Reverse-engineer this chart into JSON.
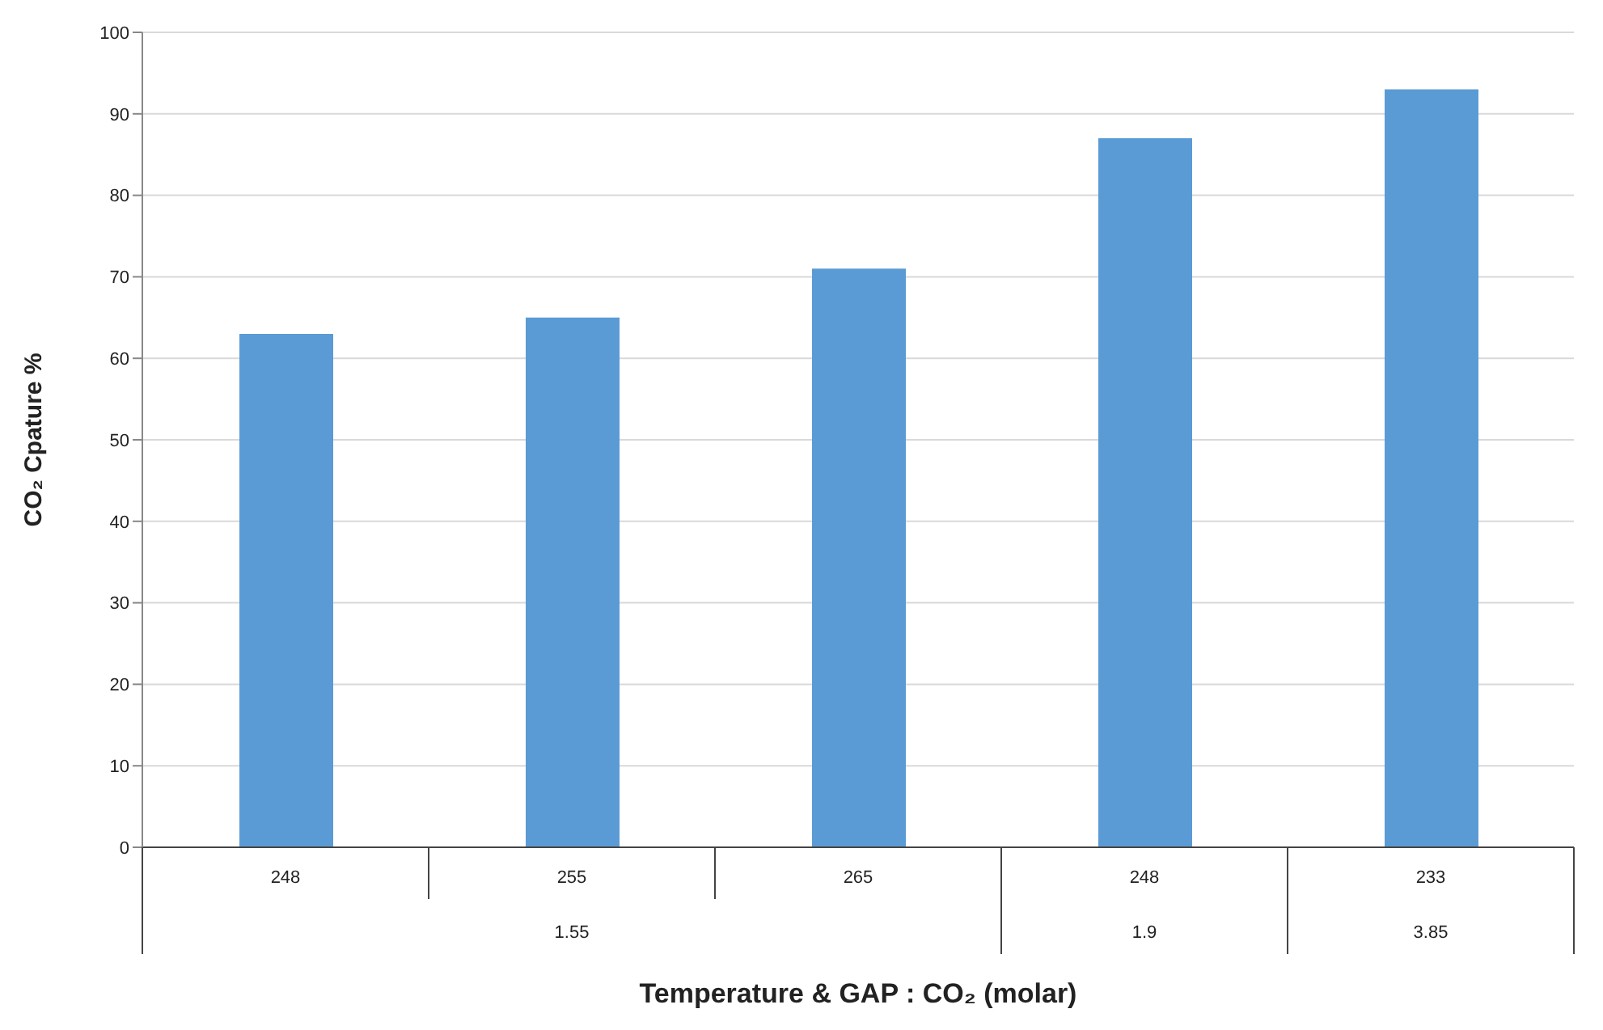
{
  "chart_data": {
    "type": "bar",
    "categories": [
      "248",
      "255",
      "265",
      "248",
      "233"
    ],
    "values": [
      63,
      65,
      71,
      87,
      93
    ],
    "color": "#5b9bd5",
    "xlabel": "Temperature & GAP : CO₂ (molar)",
    "ylabel": "CO₂ Cpature %",
    "ylim": [
      0,
      100
    ],
    "yticks": [
      0,
      10,
      20,
      30,
      40,
      50,
      60,
      70,
      80,
      90,
      100
    ],
    "grid": "y",
    "legend": false,
    "annotations": [
      "1.55",
      "1.9",
      "3.85"
    ]
  }
}
